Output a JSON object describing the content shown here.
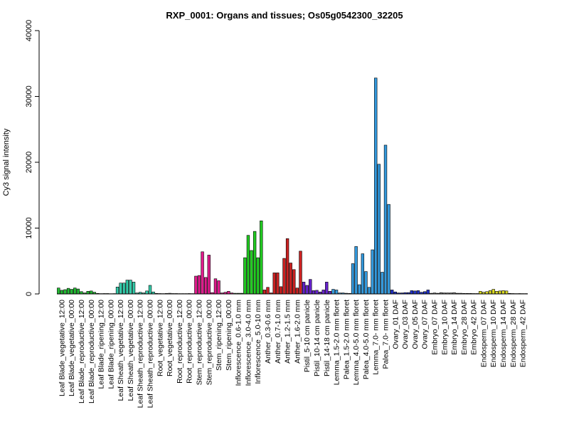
{
  "chart_data": {
    "type": "bar",
    "title": "RXP_0001: Organs and tissues; Os05g0542300_32205",
    "xlabel": "",
    "ylabel": "Cy3 signal intensity",
    "ylim": [
      0,
      40000
    ],
    "yticks": [
      0,
      10000,
      20000,
      30000,
      40000
    ],
    "grid": false,
    "groups": [
      {
        "label": "Leaf Blade_vegetative_12:00",
        "color": "#22bb33",
        "values": [
          900,
          550,
          650
        ]
      },
      {
        "label": "Leaf Blade_vegetative_00:00",
        "color": "#22bb33",
        "values": [
          850,
          700,
          900
        ]
      },
      {
        "label": "Leaf Blade_reproductive_12:00",
        "color": "#22bb33",
        "values": [
          750,
          350,
          150
        ]
      },
      {
        "label": "Leaf Blade_reproductive_00:00",
        "color": "#22bb33",
        "values": [
          400,
          450,
          250
        ]
      },
      {
        "label": "Leaf Blade_ripening_12:00",
        "color": "#22bb33",
        "values": [
          80,
          50,
          60
        ]
      },
      {
        "label": "Leaf Blade_ripening_00:00",
        "color": "#22bb33",
        "values": [
          60,
          40,
          50
        ]
      },
      {
        "label": "Leaf Sheath_vegetative_12:00",
        "color": "#33ccaa",
        "values": [
          1050,
          1650,
          1650
        ]
      },
      {
        "label": "Leaf Sheath_vegetative_00:00",
        "color": "#33ccaa",
        "values": [
          2100,
          2100,
          1800
        ]
      },
      {
        "label": "Leaf Sheath_reproductive_12:00",
        "color": "#33ccaa",
        "values": [
          150,
          250,
          150
        ]
      },
      {
        "label": "Leaf Sheath_reproductive_00:00",
        "color": "#33ccaa",
        "values": [
          450,
          1300,
          300
        ]
      },
      {
        "label": "Root_vegetative_12:00",
        "color": "#aaaaaa",
        "values": [
          80,
          60,
          50
        ]
      },
      {
        "label": "Root_vegetative_00:00",
        "color": "#aaaaaa",
        "values": [
          70,
          100,
          60
        ]
      },
      {
        "label": "Root_reproductive_12:00",
        "color": "#aaaaaa",
        "values": [
          60,
          50,
          50
        ]
      },
      {
        "label": "Root_reproductive_00:00",
        "color": "#aaaaaa",
        "values": [
          50,
          60,
          50
        ]
      },
      {
        "label": "Stem_reproductive_12:00",
        "color": "#e01a8c",
        "values": [
          2700,
          2800,
          6400
        ]
      },
      {
        "label": "Stem_reproductive_00:00",
        "color": "#e01a8c",
        "values": [
          2500,
          5900,
          200
        ]
      },
      {
        "label": "Stem_ripening_12:00",
        "color": "#e01a8c",
        "values": [
          2300,
          2000,
          150
        ]
      },
      {
        "label": "Stem_ripening_00:00",
        "color": "#e01a8c",
        "values": [
          250,
          400,
          150
        ]
      },
      {
        "label": "Inflorescence_0.6-1.0 mm",
        "color": "#22cc22",
        "values": [
          100,
          100,
          100
        ]
      },
      {
        "label": "Inflorescence_3.0-4.0 mm",
        "color": "#22cc22",
        "values": [
          5500,
          8900,
          6600
        ]
      },
      {
        "label": "Inflorescence_5.0-10 mm",
        "color": "#22cc22",
        "values": [
          9500,
          5500,
          11100
        ]
      },
      {
        "label": "Anther_0.3-0.6 mm",
        "color": "#cc2222",
        "values": [
          600,
          1000,
          150
        ]
      },
      {
        "label": "Anther_0.7-1.0 mm",
        "color": "#cc2222",
        "values": [
          3200,
          3200,
          1100
        ]
      },
      {
        "label": "Anther_1.2-1.5 mm",
        "color": "#cc2222",
        "values": [
          5400,
          8400,
          4700
        ]
      },
      {
        "label": "Anther_1.6-2.0 mm",
        "color": "#cc2222",
        "values": [
          3700,
          900,
          6500
        ]
      },
      {
        "label": "Pistil_5-10 cm panicle",
        "color": "#6622cc",
        "values": [
          1800,
          1300,
          2200
        ]
      },
      {
        "label": "Pistil_10-14 cm panicle",
        "color": "#6622cc",
        "values": [
          500,
          550,
          300
        ]
      },
      {
        "label": "Pistil_14-18 cm panicle",
        "color": "#6622cc",
        "values": [
          600,
          1800,
          400
        ]
      },
      {
        "label": "Lemma_1.5-2.0 mm floret",
        "color": "#3399dd",
        "values": [
          700,
          600,
          150
        ]
      },
      {
        "label": "Palea_1.5-2.0 mm floret",
        "color": "#3399dd",
        "values": [
          150,
          100,
          80
        ]
      },
      {
        "label": "Lemma_4.0-5.0 mm floret",
        "color": "#3399dd",
        "values": [
          4600,
          7200,
          1400
        ]
      },
      {
        "label": "Palea_4.0-5.0 mm floret",
        "color": "#3399dd",
        "values": [
          6100,
          3400,
          1000
        ]
      },
      {
        "label": "Lemma_7.0- mm floret",
        "color": "#3399dd",
        "values": [
          6700,
          32800,
          19700
        ]
      },
      {
        "label": "Palea_7.0- mm floret",
        "color": "#3399dd",
        "values": [
          3300,
          22600,
          13600
        ]
      },
      {
        "label": "Ovary_01 DAF",
        "color": "#2233cc",
        "values": [
          600,
          300,
          150
        ]
      },
      {
        "label": "Ovary_03 DAF",
        "color": "#2233cc",
        "values": [
          150,
          200,
          200
        ]
      },
      {
        "label": "Ovary_05 DAF",
        "color": "#2233cc",
        "values": [
          500,
          450,
          500
        ]
      },
      {
        "label": "Ovary_07 DAF",
        "color": "#2233cc",
        "values": [
          250,
          350,
          600
        ]
      },
      {
        "label": "Embryo_07 DAF",
        "color": "#888888",
        "values": [
          100,
          150,
          100
        ]
      },
      {
        "label": "Embryo_10 DAF",
        "color": "#888888",
        "values": [
          200,
          150,
          150
        ]
      },
      {
        "label": "Embryo_14 DAF",
        "color": "#888888",
        "values": [
          150,
          200,
          100
        ]
      },
      {
        "label": "Embryo_28 DAF",
        "color": "#888888",
        "values": [
          100,
          80,
          80
        ]
      },
      {
        "label": "Embryo_42 DAF",
        "color": "#888888",
        "values": [
          80,
          60,
          60
        ]
      },
      {
        "label": "Endosperm_07 DAF",
        "color": "#dddd22",
        "values": [
          400,
          250,
          350
        ]
      },
      {
        "label": "Endosperm_10 DAF",
        "color": "#dddd22",
        "values": [
          500,
          700,
          400
        ]
      },
      {
        "label": "Endosperm_14 DAF",
        "color": "#dddd22",
        "values": [
          450,
          500,
          450
        ]
      },
      {
        "label": "Endosperm_28 DAF",
        "color": "#dddd22",
        "values": [
          80,
          60,
          50
        ]
      },
      {
        "label": "Endosperm_42 DAF",
        "color": "#dddd22",
        "values": [
          60,
          50,
          50
        ]
      }
    ]
  }
}
